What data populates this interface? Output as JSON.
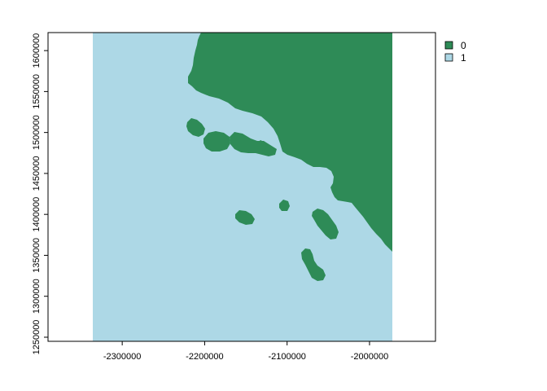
{
  "map": {
    "type": "raster",
    "x_axis": {
      "range": [
        -2390000,
        -1920000
      ],
      "ticks": [
        -2300000,
        -2200000,
        -2100000,
        -2000000
      ],
      "tick_labels": [
        "-2300000",
        "-2200000",
        "-2100000",
        "-2000000"
      ]
    },
    "y_axis": {
      "range": [
        1245000,
        1622000
      ],
      "ticks": [
        1250000,
        1300000,
        1350000,
        1400000,
        1450000,
        1500000,
        1550000,
        1600000
      ],
      "tick_labels": [
        "1250000",
        "1300000",
        "1350000",
        "1400000",
        "1450000",
        "1500000",
        "1550000",
        "1600000"
      ]
    },
    "raster_extent": {
      "xmin": -2335000,
      "xmax": -1975000,
      "ymin": 1247000,
      "ymax": 1622000
    },
    "classes": [
      {
        "value": "0",
        "label": "0",
        "color": "#2e8b57"
      },
      {
        "value": "1",
        "label": "1",
        "color": "#add8e6"
      }
    ],
    "legend_position": "top-right"
  }
}
